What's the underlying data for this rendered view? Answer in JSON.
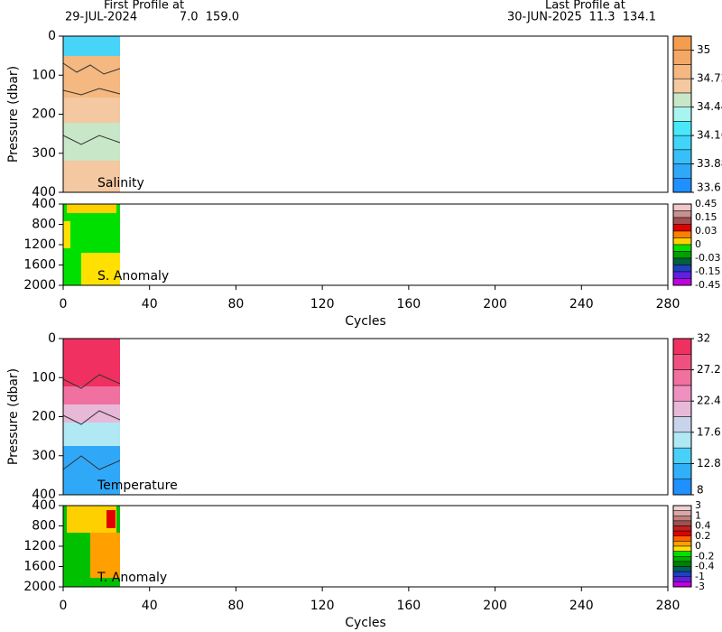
{
  "header": {
    "first_title": "First Profile at",
    "first_date": "29-JUL-2024",
    "first_position": "7.0  159.0",
    "last_title": "Last Profile at",
    "last_date": "30-JUN-2025",
    "last_position": "11.3  134.1"
  },
  "chart_data": [
    {
      "type": "field",
      "label": "Salinity",
      "ylabel": "Pressure (dbar)",
      "xlim": [
        0,
        280
      ],
      "ylim": [
        0,
        400
      ],
      "yticks": [
        0,
        100,
        200,
        300,
        400
      ],
      "colorbar": {
        "lim": [
          33.6,
          35.14
        ],
        "ticks": [
          33.6,
          33.88,
          34.16,
          34.44,
          34.72,
          35
        ],
        "colors": [
          "#1e90ff",
          "#30a8f8",
          "#38bef8",
          "#40d4f8",
          "#48e8f8",
          "#a8f4f0",
          "#c8e6c8",
          "#f4c8a0",
          "#f4b880",
          "#f4a868",
          "#f49c50"
        ]
      }
    },
    {
      "type": "anomaly",
      "label": "S. Anomaly",
      "xlabel": "Cycles",
      "xlim": [
        0,
        280
      ],
      "xticks": [
        0,
        40,
        80,
        120,
        160,
        200,
        240,
        280
      ],
      "ylim": [
        400,
        2000
      ],
      "yticks": [
        400,
        800,
        1200,
        1600,
        2000
      ],
      "colorbar": {
        "labels": [
          0.45,
          0.15,
          0.03,
          0,
          -0.03,
          -0.15,
          -0.45
        ],
        "colors": [
          "#f0c8c8",
          "#c89090",
          "#a05050",
          "#e00000",
          "#ff8000",
          "#ffd000",
          "#00e000",
          "#00a000",
          "#006040",
          "#2040c0",
          "#6020e0",
          "#c000e0"
        ]
      }
    },
    {
      "type": "field",
      "label": "Temperature",
      "ylabel": "Pressure (dbar)",
      "xlim": [
        0,
        280
      ],
      "ylim": [
        0,
        400
      ],
      "yticks": [
        0,
        100,
        200,
        300,
        400
      ],
      "colorbar": {
        "lim": [
          8,
          32
        ],
        "ticks": [
          8,
          12.8,
          17.6,
          22.4,
          27.2,
          32
        ],
        "colors": [
          "#1e90ff",
          "#30b0f8",
          "#48d0f8",
          "#b0e8f4",
          "#c8d4ec",
          "#e8b8d8",
          "#f090c0",
          "#f070a0",
          "#f05080",
          "#f03060"
        ]
      }
    },
    {
      "type": "anomaly",
      "label": "T. Anomaly",
      "xlabel": "Cycles",
      "xlim": [
        0,
        280
      ],
      "xticks": [
        0,
        40,
        80,
        120,
        160,
        200,
        240,
        280
      ],
      "ylim": [
        400,
        2000
      ],
      "yticks": [
        400,
        800,
        1200,
        1600,
        2000
      ],
      "colorbar": {
        "labels": [
          3,
          1,
          0.4,
          0.2,
          0,
          -0.2,
          -0.4,
          -1,
          -3
        ],
        "colors": [
          "#f0d0d0",
          "#d8a8a8",
          "#c08080",
          "#a05050",
          "#c02020",
          "#e00000",
          "#ff6000",
          "#ffa000",
          "#ffe000",
          "#00e000",
          "#00b000",
          "#008000",
          "#006060",
          "#2040c0",
          "#6020e0",
          "#c000e0"
        ]
      }
    }
  ]
}
